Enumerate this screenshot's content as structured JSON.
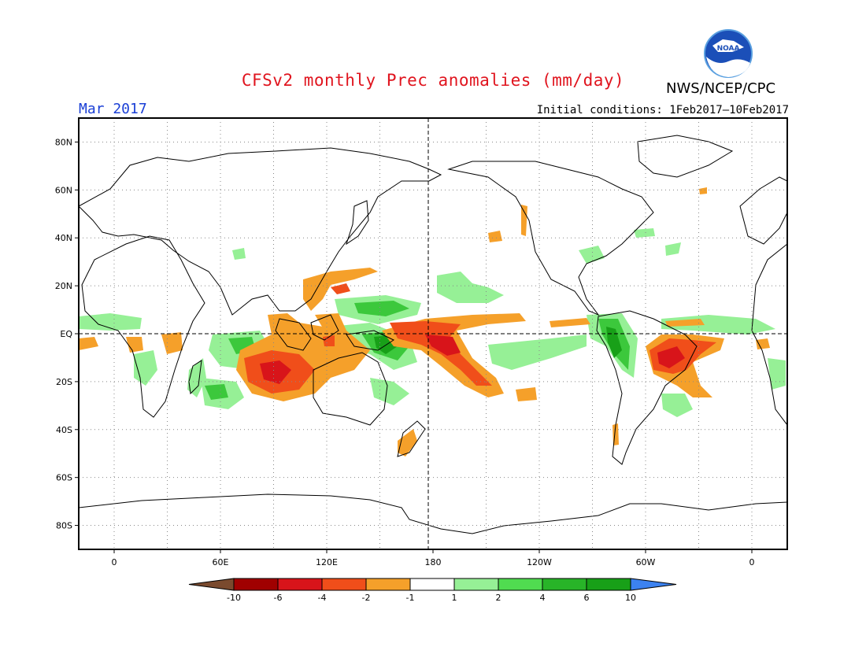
{
  "title": "CFSv2 monthly Prec anomalies (mm/day)",
  "agency": "NWS/NCEP/CPC",
  "logo_text": "NOAA",
  "valid_month": "Mar 2017",
  "initial_conditions": "Initial conditions: 1Feb2017–10Feb2017",
  "map": {
    "projection": "cylindrical equidistant",
    "lon_range": [
      -20,
      380
    ],
    "lat_range": [
      -90,
      90
    ],
    "lat_ticks": [
      "80N",
      "60N",
      "40N",
      "20N",
      "EQ",
      "20S",
      "40S",
      "60S",
      "80S"
    ],
    "lon_ticks": [
      "0",
      "60E",
      "120E",
      "180",
      "120W",
      "60W",
      "0"
    ],
    "reference_lines": [
      "equator",
      "dateline"
    ]
  },
  "colorbar": {
    "labels": [
      "-10",
      "-6",
      "-4",
      "-2",
      "-1",
      "1",
      "2",
      "4",
      "6",
      "10"
    ],
    "colors": {
      "lt_-10": "#7a4a2e",
      "-10_-6": "#a00000",
      "-6_-4": "#d8141a",
      "-4_-2": "#f04e1a",
      "-2_-1": "#f5a02a",
      "-1_1": "#ffffff",
      "1_2": "#96f096",
      "2_4": "#50dc50",
      "4_6": "#28b428",
      "6_10": "#18a018",
      "gt_10": "#3c82f0"
    }
  }
}
